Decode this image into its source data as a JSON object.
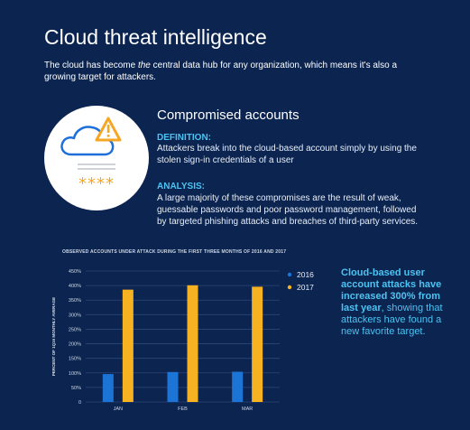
{
  "page": {
    "title": "Cloud threat intelligence",
    "intro_before": "The cloud has become ",
    "intro_em": "the",
    "intro_after": " central data hub for any organization, which means it's also a growing target for attackers."
  },
  "section": {
    "title": "Compromised accounts",
    "definition_label": "DEFINITION:",
    "definition_text": "Attackers break into the cloud-based account simply by using the stolen sign-in credentials of a user",
    "analysis_label": "ANALYSIS:",
    "analysis_text": "A large majority of these compromises are the result of weak, guessable passwords and poor password management, followed by targeted phishing attacks and breaches of third-party services.",
    "badge_icons": [
      "cloud-icon",
      "warning-icon",
      "password-stars-icon"
    ],
    "badge_stars": "****"
  },
  "callout": {
    "bold": "Cloud-based user account attacks have increased 300% from last year",
    "rest": ", showing that attackers have found a new favorite target."
  },
  "colors": {
    "background": "#0b2450",
    "accent": "#4cc3f2",
    "series_2016": "#1b74d6",
    "series_2017": "#f6b221",
    "warning": "#f5a623",
    "cloud_outline": "#1e6fd9"
  },
  "chart_data": {
    "type": "bar",
    "title": "OBSERVED ACCOUNTS UNDER ATTACK DURING THE FIRST THREE MONTHS OF 2016 AND 2017",
    "xlabel": "",
    "ylabel": "PERCENT OF 1Q16 MONTHLY AVERAGE",
    "categories": [
      "JAN",
      "FEB",
      "MAR"
    ],
    "series": [
      {
        "name": "2016",
        "values": [
          96,
          103,
          104
        ],
        "color": "#1b74d6"
      },
      {
        "name": "2017",
        "values": [
          386,
          401,
          396
        ],
        "color": "#f6b221"
      }
    ],
    "yticks": [
      "0",
      "50%",
      "100%",
      "150%",
      "200%",
      "250%",
      "300%",
      "350%",
      "400%",
      "450%"
    ],
    "ylim": [
      0,
      450
    ],
    "grid": true,
    "legend_position": "right"
  }
}
